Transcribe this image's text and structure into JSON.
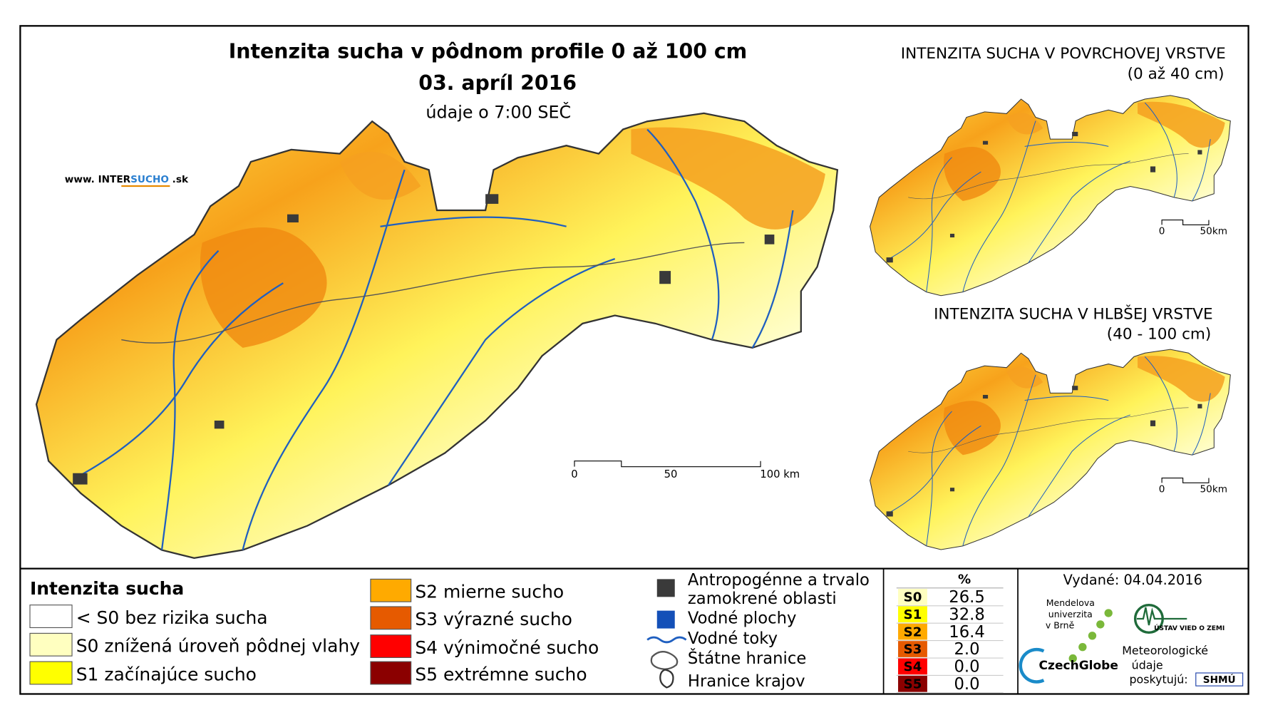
{
  "map": {
    "title": "Intenzita sucha v pôdnom profile 0 až 100 cm",
    "date": "03. apríl 2016",
    "subtitle": "údaje o 7:00 SEČ",
    "website": [
      "www. INTER",
      "SUCHO",
      " .sk"
    ],
    "scale": [
      "0",
      "50",
      "100 km"
    ]
  },
  "insets": [
    {
      "title": "INTENZITA SUCHA V POVRCHOVEJ VRSTVE",
      "subtitle": "(0 až 40 cm)",
      "scale": [
        "0",
        "50km"
      ]
    },
    {
      "title": "INTENZITA SUCHA V HLBŠEJ VRSTVE",
      "subtitle": "(40 - 100 cm)",
      "scale": [
        "0",
        "50km"
      ]
    }
  ],
  "legend": {
    "title": "Intenzita sucha",
    "classes": [
      {
        "label": "< S0 bez rizika sucha",
        "color": "#ffffff"
      },
      {
        "label": "S0 znížená úroveň pôdnej vlahy",
        "color": "#ffffc0"
      },
      {
        "label": "S1 začínajúce sucho",
        "color": "#ffff00"
      },
      {
        "label": "S2 mierne sucho",
        "color": "#ffaa00"
      },
      {
        "label": "S3 výrazné sucho",
        "color": "#e65a00"
      },
      {
        "label": "S4 výnimočné sucho",
        "color": "#ff0000"
      },
      {
        "label": "S5 extrémne sucho",
        "color": "#8b0000"
      }
    ],
    "symbols": [
      [
        "Antropogénne a trvalo",
        "zamokrené oblasti"
      ],
      [
        "Vodné plochy"
      ],
      [
        "Vodné toky"
      ],
      [
        "Štátne hranice"
      ],
      [
        "Hranice krajov"
      ]
    ]
  },
  "table": {
    "header": "%",
    "rows": [
      [
        "S0",
        "26.5"
      ],
      [
        "S1",
        "32.8"
      ],
      [
        "S2",
        "16.4"
      ],
      [
        "S3",
        "2.0"
      ],
      [
        "S4",
        "0.0"
      ],
      [
        "S5",
        "0.0"
      ]
    ]
  },
  "issued": "Vydané: 04.04.2016",
  "logos": {
    "mendel": [
      "Mendelova",
      "univerzita",
      "v Brně"
    ],
    "czechglobe": "CzechGlobe",
    "ustav": "ÚSTAV VIED O ZEMI",
    "meteo": [
      "Meteorologické",
      "údaje",
      "poskytujú:"
    ],
    "shmu": "SHMÚ"
  }
}
